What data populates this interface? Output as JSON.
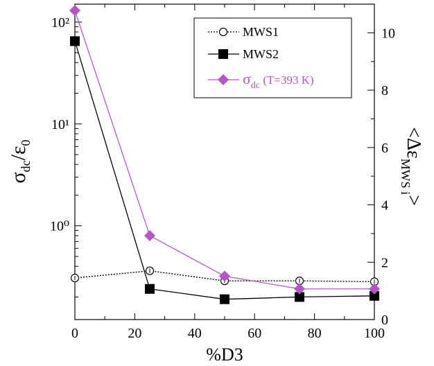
{
  "chart_data": {
    "type": "line",
    "x": [
      0,
      25,
      50,
      75,
      100
    ],
    "xlabel": "%D3",
    "xlim": [
      0,
      100
    ],
    "xticks": [
      "0",
      "20",
      "40",
      "60",
      "80",
      "100"
    ],
    "ylabel_left": {
      "base": "σ",
      "base_sub": "dc",
      "slash": "/ε",
      "slash_sub": "0"
    },
    "ylabel_right": {
      "open": "<Δε",
      "sub": "MWS i",
      "close": ">"
    },
    "left_axis": {
      "scale": "log",
      "ylim": [
        0.12,
        150
      ],
      "ticks": [
        "10⁰",
        "10¹",
        "10²"
      ]
    },
    "right_axis": {
      "scale": "linear",
      "ylim": [
        0,
        11
      ],
      "ticks": [
        "0",
        "2",
        "4",
        "6",
        "8",
        "10"
      ]
    },
    "series": [
      {
        "name": "MWS1",
        "axis": "right",
        "marker": "open-circle",
        "line": "dotted",
        "color": "#000000",
        "values": [
          1.45,
          1.7,
          1.35,
          1.35,
          1.32
        ]
      },
      {
        "name": "MWS2",
        "axis": "left",
        "marker": "filled-square",
        "line": "solid",
        "color": "#000000",
        "values": [
          65,
          0.24,
          0.19,
          0.2,
          0.205
        ]
      },
      {
        "name": "σdc (T=393 K)",
        "label_main": "σ",
        "label_sub": "dc",
        "label_rest": " (T=393 K)",
        "axis": "left",
        "marker": "filled-diamond",
        "line": "solid",
        "color": "#b455c8",
        "values": [
          130,
          0.8,
          0.32,
          0.24,
          0.24
        ]
      }
    ],
    "legend_placement": "top-right",
    "grid": false
  }
}
